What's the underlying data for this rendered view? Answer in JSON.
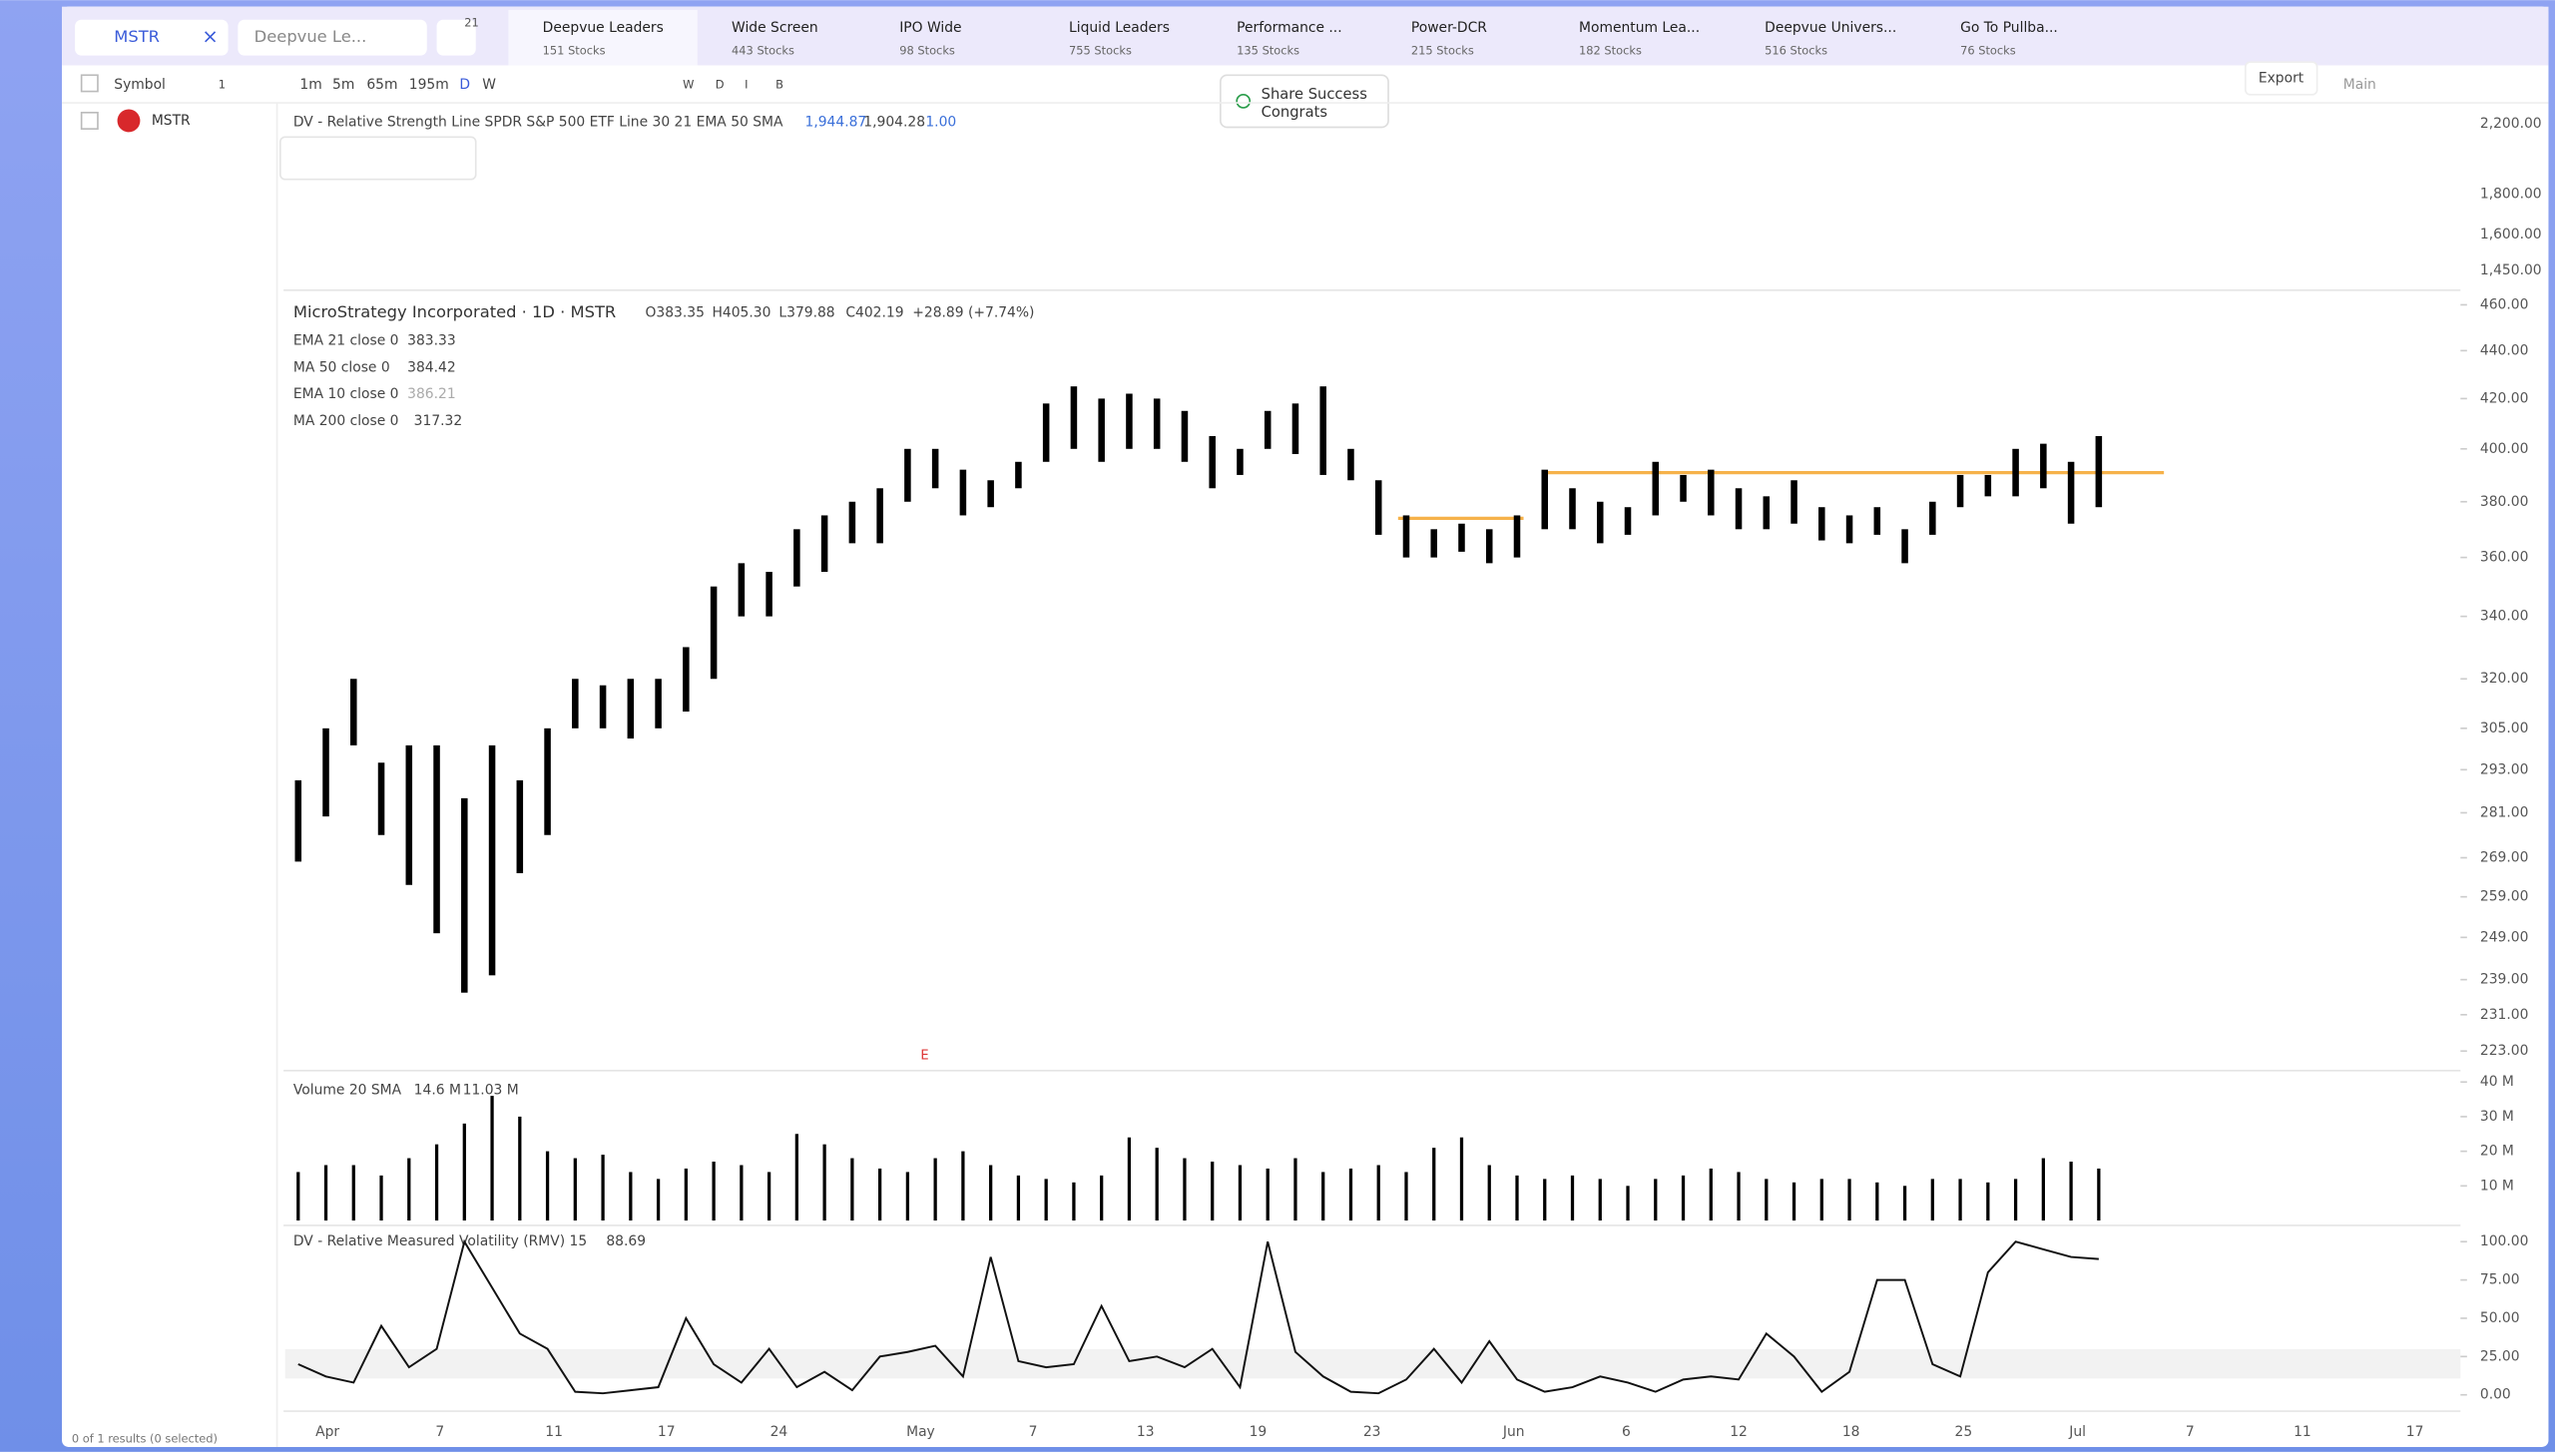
{
  "search": "MSTR",
  "watchlist": "Deepvue Le...",
  "badge": "21",
  "tabs": [
    {
      "name": "Deepvue Leaders",
      "count": "151 Stocks"
    },
    {
      "name": "Wide Screen",
      "count": "443 Stocks"
    },
    {
      "name": "IPO Wide",
      "count": "98 Stocks"
    },
    {
      "name": "Liquid Leaders",
      "count": "755 Stocks"
    },
    {
      "name": "Performance ...",
      "count": "135 Stocks"
    },
    {
      "name": "Power-DCR",
      "count": "215 Stocks"
    },
    {
      "name": "Momentum Lea...",
      "count": "182 Stocks"
    },
    {
      "name": "Deepvue Univers...",
      "count": "516 Stocks"
    },
    {
      "name": "Go To Pullba...",
      "count": "76 Stocks"
    }
  ],
  "intervals": [
    "1m",
    "5m",
    "65m",
    "195m",
    "D",
    "W"
  ],
  "letters": [
    "W",
    "D",
    "I",
    "B"
  ],
  "symbol_header": "Symbol",
  "symbol_count": "1",
  "symbol": "MSTR",
  "footer": "0 of 1 results (0 selected)",
  "toast": {
    "title": "Share Success",
    "text": "Congrats"
  },
  "export": "Export",
  "layout": "Main",
  "rs": {
    "label": "DV - Relative Strength Line SPDR S&P 500 ETF Line 30 21 EMA 50 SMA",
    "v1": "1,944.87",
    "v2": "1,904.28",
    "v3": "1.00",
    "ticks": [
      "2,200.00",
      "1,800.00",
      "1,600.00",
      "1,450.00"
    ]
  },
  "chart_data": {
    "type": "bar",
    "title": "MicroStrategy Incorporated · 1D · MSTR",
    "ohlc": [
      "O383.35",
      "H405.30",
      "L379.88",
      "C402.19",
      "+28.89 (+7.74%)"
    ],
    "legend": [
      [
        "EMA 21 close 0",
        "383.33"
      ],
      [
        "MA 50 close 0",
        "384.42"
      ],
      [
        "EMA 10 close 0",
        "386.21"
      ],
      [
        "MA 200 close 0",
        "317.32"
      ]
    ],
    "earnings": "E",
    "log": true,
    "color": "#000000",
    "ylim": [
      223,
      460
    ],
    "yticks": [
      {
        "value": 460,
        "label": "460.00"
      },
      {
        "value": 440,
        "label": "440.00"
      },
      {
        "value": 420,
        "label": "420.00"
      },
      {
        "value": 400,
        "label": "400.00"
      },
      {
        "value": 380,
        "label": "380.00"
      },
      {
        "value": 360,
        "label": "360.00"
      },
      {
        "value": 340,
        "label": "340.00"
      },
      {
        "value": 320,
        "label": "320.00"
      },
      {
        "value": 305,
        "label": "305.00"
      },
      {
        "value": 293,
        "label": "293.00"
      },
      {
        "value": 281,
        "label": "281.00"
      },
      {
        "value": 269,
        "label": "269.00"
      },
      {
        "value": 259,
        "label": "259.00"
      },
      {
        "value": 249,
        "label": "249.00"
      },
      {
        "value": 239,
        "label": "239.00"
      },
      {
        "value": 231,
        "label": "231.00"
      },
      {
        "value": 223,
        "label": "223.00"
      }
    ],
    "high": [
      290,
      305,
      320,
      295,
      300,
      300,
      285,
      300,
      290,
      305,
      320,
      318,
      320,
      320,
      330,
      350,
      358,
      355,
      370,
      375,
      380,
      385,
      400,
      400,
      392,
      388,
      395,
      418,
      425,
      420,
      422,
      420,
      415,
      405,
      400,
      415,
      418,
      425,
      400,
      388,
      375,
      370,
      372,
      370,
      375,
      392,
      385,
      380,
      378,
      395,
      390,
      392,
      385,
      382,
      388,
      378,
      375,
      378,
      370,
      380,
      390,
      390,
      400,
      402,
      395,
      405
    ],
    "low": [
      268,
      280,
      300,
      275,
      262,
      250,
      236,
      240,
      265,
      275,
      305,
      305,
      302,
      305,
      310,
      320,
      340,
      340,
      350,
      355,
      365,
      365,
      380,
      385,
      375,
      378,
      385,
      395,
      400,
      395,
      400,
      400,
      395,
      385,
      390,
      400,
      398,
      390,
      388,
      368,
      360,
      360,
      362,
      358,
      360,
      370,
      370,
      365,
      368,
      375,
      380,
      375,
      370,
      370,
      372,
      366,
      365,
      368,
      358,
      368,
      378,
      382,
      382,
      385,
      372,
      378
    ],
    "volume": {
      "label": "Volume 20 SMA",
      "v1": "14.6 M",
      "v2": "11.03 M",
      "ylim": [
        0,
        40
      ],
      "yticks": [
        {
          "value": 40,
          "label": "40 M"
        },
        {
          "value": 30,
          "label": "30 M"
        },
        {
          "value": 20,
          "label": "20 M"
        },
        {
          "value": 10,
          "label": "10 M"
        }
      ],
      "values": [
        14,
        16,
        16,
        13,
        18,
        22,
        28,
        36,
        30,
        20,
        18,
        19,
        14,
        12,
        15,
        17,
        16,
        14,
        25,
        22,
        18,
        15,
        14,
        18,
        20,
        16,
        13,
        12,
        11,
        13,
        24,
        21,
        18,
        17,
        16,
        15,
        18,
        14,
        15,
        16,
        14,
        21,
        24,
        16,
        13,
        12,
        13,
        12,
        10,
        12,
        13,
        15,
        14,
        12,
        11,
        12,
        12,
        11,
        10,
        12,
        12,
        11,
        12,
        18,
        17,
        15
      ]
    },
    "rmv": {
      "label": "DV - Relative Measured Volatility (RMV) 15",
      "v1": "88.69",
      "ylim": [
        0,
        100
      ],
      "yticks": [
        {
          "value": 100,
          "label": "100.00"
        },
        {
          "value": 75,
          "label": "75.00"
        },
        {
          "value": 50,
          "label": "50.00"
        },
        {
          "value": 25,
          "label": "25.00"
        },
        {
          "value": 0,
          "label": "0.00"
        }
      ],
      "values": [
        20,
        12,
        8,
        45,
        18,
        30,
        100,
        70,
        40,
        30,
        2,
        1,
        3,
        5,
        50,
        20,
        8,
        30,
        5,
        15,
        3,
        25,
        28,
        32,
        12,
        90,
        22,
        18,
        20,
        58,
        22,
        25,
        18,
        30,
        5,
        100,
        28,
        12,
        2,
        1,
        10,
        30,
        8,
        35,
        10,
        2,
        5,
        12,
        8,
        2,
        10,
        12,
        10,
        40,
        25,
        2,
        15,
        75,
        75,
        20,
        12,
        80,
        100,
        95,
        90,
        88.69
      ]
    },
    "x_labels": [
      "Apr",
      "7",
      "11",
      "17",
      "24",
      "May",
      "7",
      "13",
      "19",
      "23",
      "Jun",
      "6",
      "12",
      "18",
      "25",
      "Jul",
      "7",
      "11",
      "17"
    ]
  }
}
